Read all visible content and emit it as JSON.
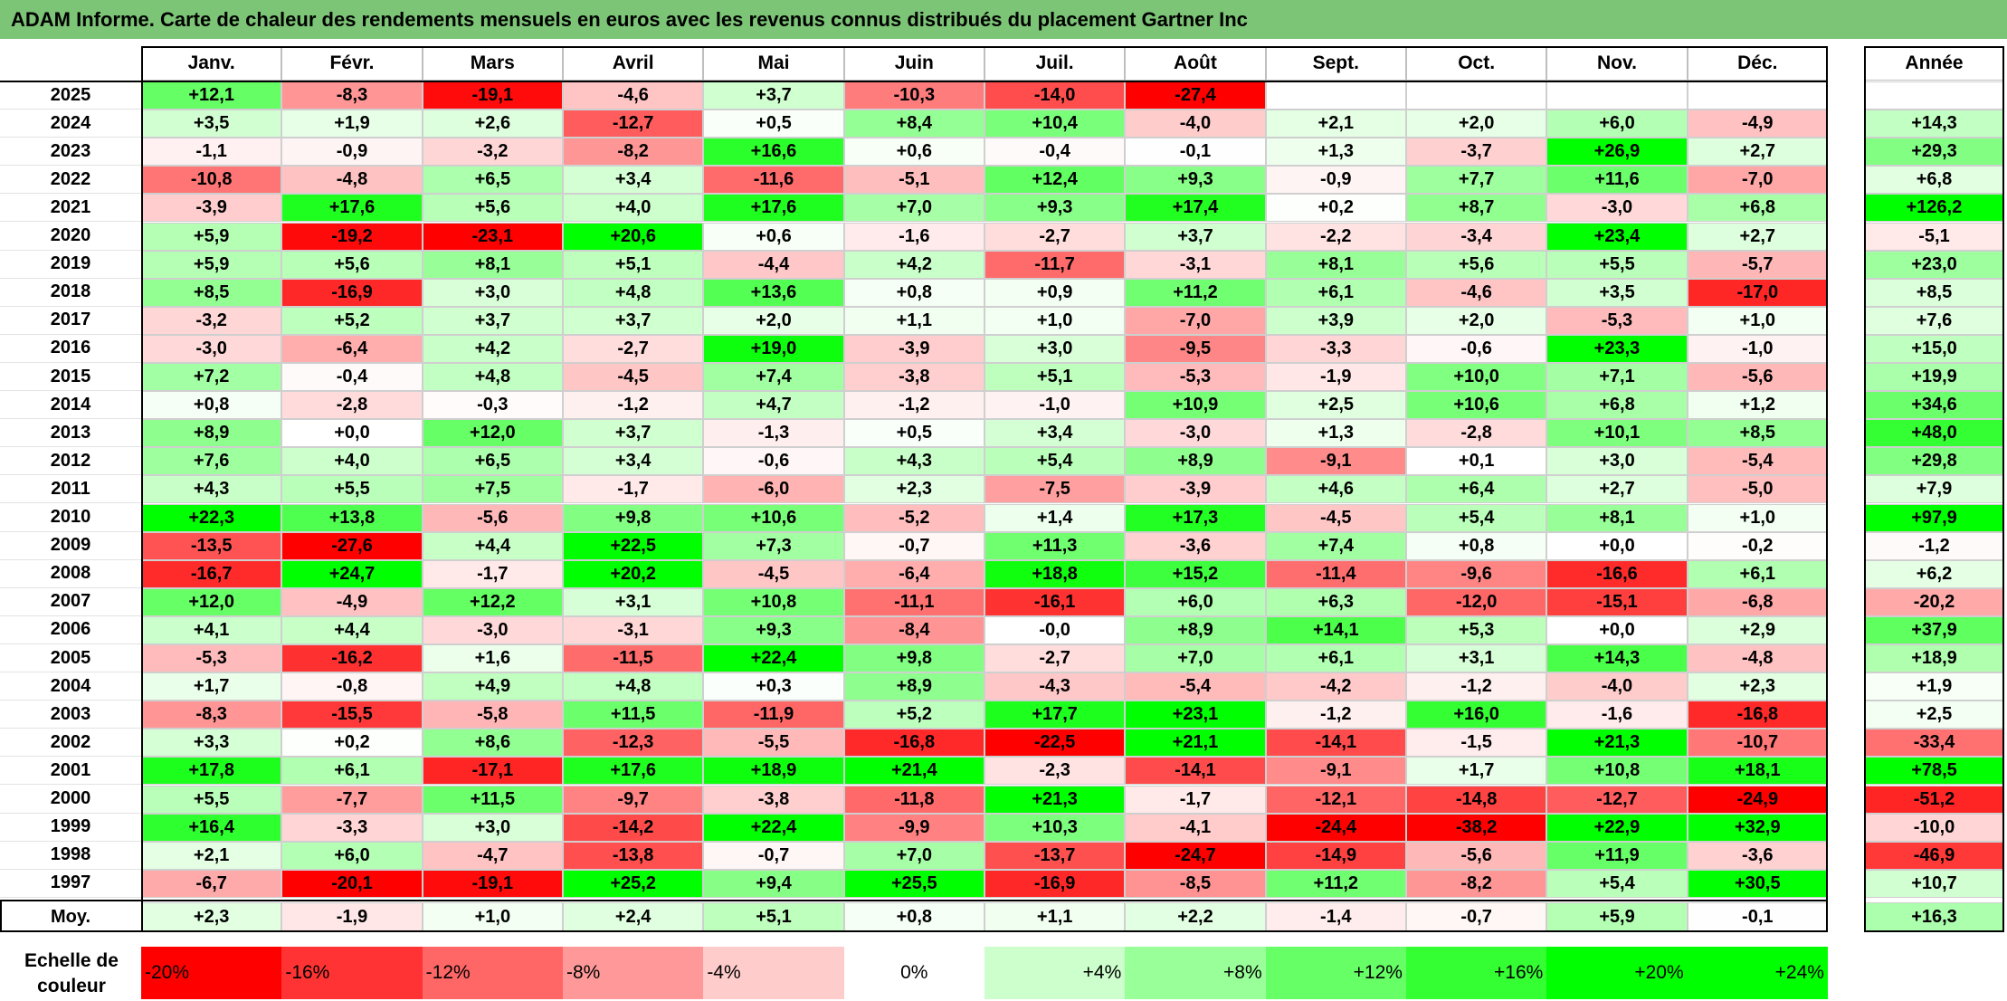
{
  "title": "ADAM Informe. Carte de chaleur des rendements mensuels en euros avec les revenus connus distribués du placement Gartner Inc",
  "chart_data": {
    "type": "heatmap",
    "title": "ADAM Informe. Carte de chaleur des rendements mensuels en euros avec les revenus connus distribués du placement Gartner Inc",
    "months": [
      "Janv.",
      "Févr.",
      "Mars",
      "Avril",
      "Mai",
      "Juin",
      "Juil.",
      "Août",
      "Sept.",
      "Oct.",
      "Nov.",
      "Déc."
    ],
    "year_header": "Année",
    "rows": [
      {
        "year": "2025",
        "values": [
          "+12,1",
          "-8,3",
          "-19,1",
          "-4,6",
          "+3,7",
          "-10,3",
          "-14,0",
          "-27,4",
          "",
          "",
          "",
          ""
        ],
        "annual": ""
      },
      {
        "year": "2024",
        "values": [
          "+3,5",
          "+1,9",
          "+2,6",
          "-12,7",
          "+0,5",
          "+8,4",
          "+10,4",
          "-4,0",
          "+2,1",
          "+2,0",
          "+6,0",
          "-4,9"
        ],
        "annual": "+14,3"
      },
      {
        "year": "2023",
        "values": [
          "-1,1",
          "-0,9",
          "-3,2",
          "-8,2",
          "+16,6",
          "+0,6",
          "-0,4",
          "-0,1",
          "+1,3",
          "-3,7",
          "+26,9",
          "+2,7"
        ],
        "annual": "+29,3"
      },
      {
        "year": "2022",
        "values": [
          "-10,8",
          "-4,8",
          "+6,5",
          "+3,4",
          "-11,6",
          "-5,1",
          "+12,4",
          "+9,3",
          "-0,9",
          "+7,7",
          "+11,6",
          "-7,0"
        ],
        "annual": "+6,8"
      },
      {
        "year": "2021",
        "values": [
          "-3,9",
          "+17,6",
          "+5,6",
          "+4,0",
          "+17,6",
          "+7,0",
          "+9,3",
          "+17,4",
          "+0,2",
          "+8,7",
          "-3,0",
          "+6,8"
        ],
        "annual": "+126,2"
      },
      {
        "year": "2020",
        "values": [
          "+5,9",
          "-19,2",
          "-23,1",
          "+20,6",
          "+0,6",
          "-1,6",
          "-2,7",
          "+3,7",
          "-2,2",
          "-3,4",
          "+23,4",
          "+2,7"
        ],
        "annual": "-5,1"
      },
      {
        "year": "2019",
        "values": [
          "+5,9",
          "+5,6",
          "+8,1",
          "+5,1",
          "-4,4",
          "+4,2",
          "-11,7",
          "-3,1",
          "+8,1",
          "+5,6",
          "+5,5",
          "-5,7"
        ],
        "annual": "+23,0"
      },
      {
        "year": "2018",
        "values": [
          "+8,5",
          "-16,9",
          "+3,0",
          "+4,8",
          "+13,6",
          "+0,8",
          "+0,9",
          "+11,2",
          "+6,1",
          "-4,6",
          "+3,5",
          "-17,0"
        ],
        "annual": "+8,5"
      },
      {
        "year": "2017",
        "values": [
          "-3,2",
          "+5,2",
          "+3,7",
          "+3,7",
          "+2,0",
          "+1,1",
          "+1,0",
          "-7,0",
          "+3,9",
          "+2,0",
          "-5,3",
          "+1,0"
        ],
        "annual": "+7,6"
      },
      {
        "year": "2016",
        "values": [
          "-3,0",
          "-6,4",
          "+4,2",
          "-2,7",
          "+19,0",
          "-3,9",
          "+3,0",
          "-9,5",
          "-3,3",
          "-0,6",
          "+23,3",
          "-1,0"
        ],
        "annual": "+15,0"
      },
      {
        "year": "2015",
        "values": [
          "+7,2",
          "-0,4",
          "+4,8",
          "-4,5",
          "+7,4",
          "-3,8",
          "+5,1",
          "-5,3",
          "-1,9",
          "+10,0",
          "+7,1",
          "-5,6"
        ],
        "annual": "+19,9"
      },
      {
        "year": "2014",
        "values": [
          "+0,8",
          "-2,8",
          "-0,3",
          "-1,2",
          "+4,7",
          "-1,2",
          "-1,0",
          "+10,9",
          "+2,5",
          "+10,6",
          "+6,8",
          "+1,2"
        ],
        "annual": "+34,6"
      },
      {
        "year": "2013",
        "values": [
          "+8,9",
          "+0,0",
          "+12,0",
          "+3,7",
          "-1,3",
          "+0,5",
          "+3,4",
          "-3,0",
          "+1,3",
          "-2,8",
          "+10,1",
          "+8,5"
        ],
        "annual": "+48,0"
      },
      {
        "year": "2012",
        "values": [
          "+7,6",
          "+4,0",
          "+6,5",
          "+3,4",
          "-0,6",
          "+4,3",
          "+5,4",
          "+8,9",
          "-9,1",
          "+0,1",
          "+3,0",
          "-5,4"
        ],
        "annual": "+29,8"
      },
      {
        "year": "2011",
        "values": [
          "+4,3",
          "+5,5",
          "+7,5",
          "-1,7",
          "-6,0",
          "+2,3",
          "-7,5",
          "-3,9",
          "+4,6",
          "+6,4",
          "+2,7",
          "-5,0"
        ],
        "annual": "+7,9"
      },
      {
        "year": "2010",
        "values": [
          "+22,3",
          "+13,8",
          "-5,6",
          "+9,8",
          "+10,6",
          "-5,2",
          "+1,4",
          "+17,3",
          "-4,5",
          "+5,4",
          "+8,1",
          "+1,0"
        ],
        "annual": "+97,9"
      },
      {
        "year": "2009",
        "values": [
          "-13,5",
          "-27,6",
          "+4,4",
          "+22,5",
          "+7,3",
          "-0,7",
          "+11,3",
          "-3,6",
          "+7,4",
          "+0,8",
          "+0,0",
          "-0,2"
        ],
        "annual": "-1,2"
      },
      {
        "year": "2008",
        "values": [
          "-16,7",
          "+24,7",
          "-1,7",
          "+20,2",
          "-4,5",
          "-6,4",
          "+18,8",
          "+15,2",
          "-11,4",
          "-9,6",
          "-16,6",
          "+6,1"
        ],
        "annual": "+6,2"
      },
      {
        "year": "2007",
        "values": [
          "+12,0",
          "-4,9",
          "+12,2",
          "+3,1",
          "+10,8",
          "-11,1",
          "-16,1",
          "+6,0",
          "+6,3",
          "-12,0",
          "-15,1",
          "-6,8"
        ],
        "annual": "-20,2"
      },
      {
        "year": "2006",
        "values": [
          "+4,1",
          "+4,4",
          "-3,0",
          "-3,1",
          "+9,3",
          "-8,4",
          "-0,0",
          "+8,9",
          "+14,1",
          "+5,3",
          "+0,0",
          "+2,9"
        ],
        "annual": "+37,9"
      },
      {
        "year": "2005",
        "values": [
          "-5,3",
          "-16,2",
          "+1,6",
          "-11,5",
          "+22,4",
          "+9,8",
          "-2,7",
          "+7,0",
          "+6,1",
          "+3,1",
          "+14,3",
          "-4,8"
        ],
        "annual": "+18,9"
      },
      {
        "year": "2004",
        "values": [
          "+1,7",
          "-0,8",
          "+4,9",
          "+4,8",
          "+0,3",
          "+8,9",
          "-4,3",
          "-5,4",
          "-4,2",
          "-1,2",
          "-4,0",
          "+2,3"
        ],
        "annual": "+1,9"
      },
      {
        "year": "2003",
        "values": [
          "-8,3",
          "-15,5",
          "-5,8",
          "+11,5",
          "-11,9",
          "+5,2",
          "+17,7",
          "+23,1",
          "-1,2",
          "+16,0",
          "-1,6",
          "-16,8"
        ],
        "annual": "+2,5"
      },
      {
        "year": "2002",
        "values": [
          "+3,3",
          "+0,2",
          "+8,6",
          "-12,3",
          "-5,5",
          "-16,8",
          "-22,5",
          "+21,1",
          "-14,1",
          "-1,5",
          "+21,3",
          "-10,7"
        ],
        "annual": "-33,4"
      },
      {
        "year": "2001",
        "values": [
          "+17,8",
          "+6,1",
          "-17,1",
          "+17,6",
          "+18,9",
          "+21,4",
          "-2,3",
          "-14,1",
          "-9,1",
          "+1,7",
          "+10,8",
          "+18,1"
        ],
        "annual": "+78,5"
      },
      {
        "year": "2000",
        "values": [
          "+5,5",
          "-7,7",
          "+11,5",
          "-9,7",
          "-3,8",
          "-11,8",
          "+21,3",
          "-1,7",
          "-12,1",
          "-14,8",
          "-12,7",
          "-24,9"
        ],
        "annual": "-51,2"
      },
      {
        "year": "1999",
        "values": [
          "+16,4",
          "-3,3",
          "+3,0",
          "-14,2",
          "+22,4",
          "-9,9",
          "+10,3",
          "-4,1",
          "-24,4",
          "-38,2",
          "+22,9",
          "+32,9"
        ],
        "annual": "-10,0"
      },
      {
        "year": "1998",
        "values": [
          "+2,1",
          "+6,0",
          "-4,7",
          "-13,8",
          "-0,7",
          "+7,0",
          "-13,7",
          "-24,7",
          "-14,9",
          "-5,6",
          "+11,9",
          "-3,6"
        ],
        "annual": "-46,9"
      },
      {
        "year": "1997",
        "values": [
          "-6,7",
          "-20,1",
          "-19,1",
          "+25,2",
          "+9,4",
          "+25,5",
          "-16,9",
          "-8,5",
          "+11,2",
          "-8,2",
          "+5,4",
          "+30,5"
        ],
        "annual": "+10,7"
      }
    ],
    "average": {
      "label": "Moy.",
      "values": [
        "+2,3",
        "-1,9",
        "+1,0",
        "+2,4",
        "+5,1",
        "+0,8",
        "+1,1",
        "+2,2",
        "-1,4",
        "-0,7",
        "+5,9",
        "-0,1"
      ],
      "annual": "+16,3"
    },
    "color_scale": {
      "label": "Echelle de couleur",
      "steps": [
        {
          "label": "-20%",
          "value": -20
        },
        {
          "label": "-16%",
          "value": -16
        },
        {
          "label": "-12%",
          "value": -12
        },
        {
          "label": "-8%",
          "value": -8
        },
        {
          "label": "-4%",
          "value": -4
        },
        {
          "label": "0%",
          "value": 0
        },
        {
          "label": "+4%",
          "value": 4
        },
        {
          "label": "+8%",
          "value": 8
        },
        {
          "label": "+12%",
          "value": 12
        },
        {
          "label": "+16%",
          "value": 16
        },
        {
          "label": "+20%",
          "value": 20
        },
        {
          "label": "+24%",
          "value": 24
        }
      ],
      "negative_color": "#ff0000",
      "positive_color": "#00ff00",
      "neutral_color": "#ffffff"
    }
  }
}
